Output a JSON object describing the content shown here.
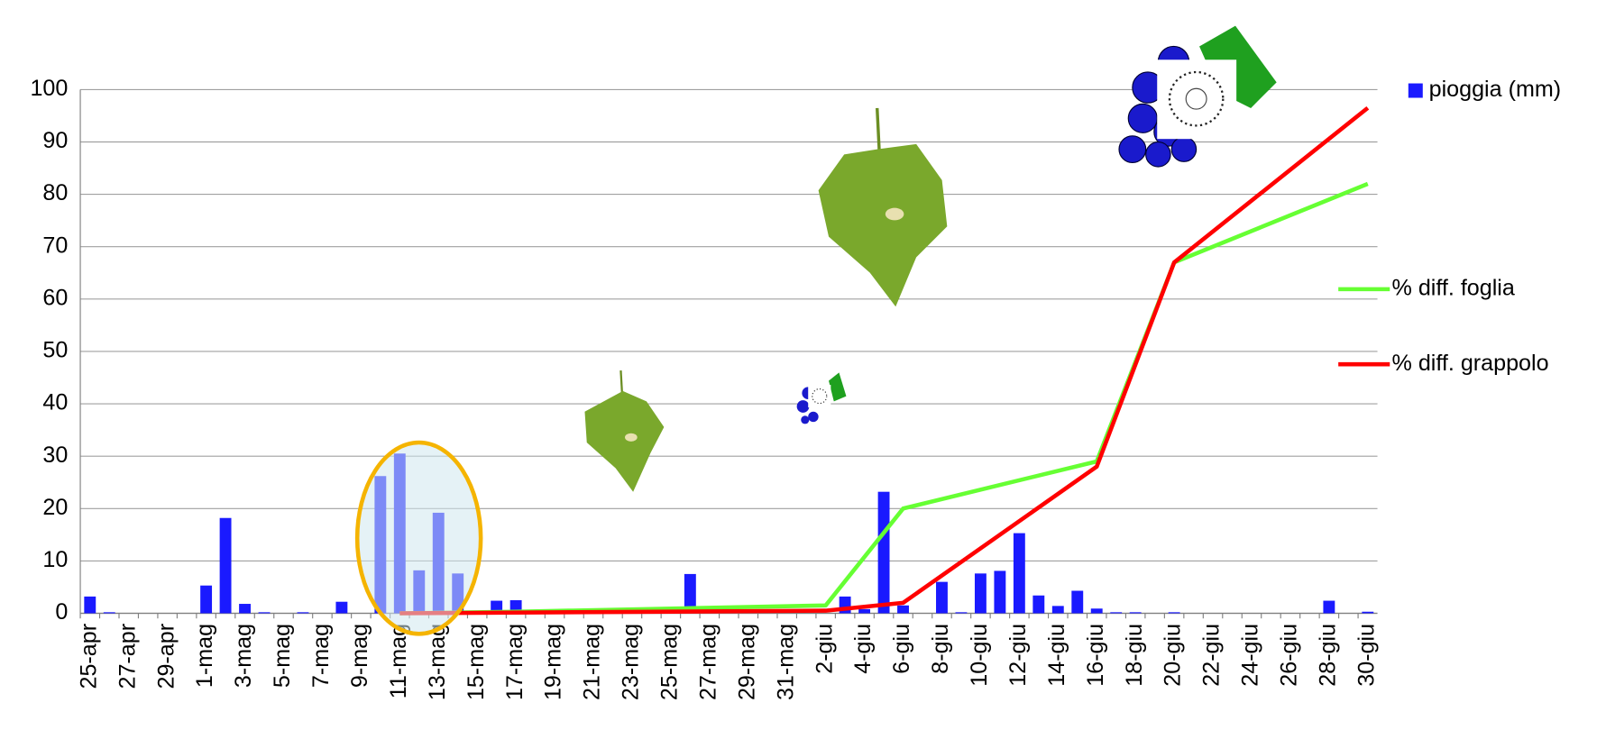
{
  "chart_data": {
    "type": "bar",
    "categories": [
      "25-apr",
      null,
      "27-apr",
      null,
      "29-apr",
      null,
      "1-mag",
      null,
      "3-mag",
      null,
      "5-mag",
      null,
      "7-mag",
      null,
      "9-mag",
      null,
      "11-mag",
      null,
      "13-mag",
      null,
      "15-mag",
      null,
      "17-mag",
      null,
      "19-mag",
      null,
      "21-mag",
      null,
      "23-mag",
      null,
      "25-mag",
      null,
      "27-mag",
      null,
      "29-mag",
      null,
      "31-mag",
      null,
      "2-giu",
      null,
      "4-giu",
      null,
      "6-giu",
      null,
      "8-giu",
      null,
      "10-giu",
      null,
      "12-giu",
      null,
      "14-giu",
      null,
      "16-giu",
      null,
      "18-giu",
      null,
      "20-giu",
      null,
      "22-giu",
      null,
      "24-giu",
      null,
      "26-giu",
      null,
      "28-giu",
      null,
      "30-giu"
    ],
    "ylim": [
      0,
      100
    ],
    "yticks": [
      0,
      10,
      20,
      30,
      40,
      50,
      60,
      70,
      80,
      90,
      100
    ],
    "grid": true,
    "legend": "right",
    "series": [
      {
        "name": "pioggia (mm)",
        "type": "bar",
        "color": "#1a1aff",
        "values": [
          3.2,
          0.2,
          0,
          0,
          0,
          0,
          5.3,
          18.2,
          1.8,
          0.2,
          0,
          0.2,
          0,
          2.2,
          0,
          26.2,
          30.5,
          8.2,
          19.2,
          7.6,
          0,
          2.4,
          2.5,
          0,
          0,
          0,
          0,
          0,
          0,
          1.0,
          0,
          7.5,
          0,
          0,
          0,
          0,
          0,
          0,
          0,
          3.2,
          0.8,
          23.2,
          1.5,
          0,
          6,
          0.2,
          7.6,
          8.1,
          15.3,
          3.4,
          1.4,
          4.3,
          0.9,
          0.2,
          0.2,
          0,
          0.2,
          0,
          0,
          0,
          0,
          0,
          0,
          0,
          2.4,
          0,
          0.3
        ]
      },
      {
        "name": "% diff. foglia",
        "type": "line",
        "color": "#66ff33",
        "x": [
          "11-mag",
          "17-mag",
          "2-giu",
          "6-giu",
          "16-giu",
          "20-giu",
          "30-giu"
        ],
        "values": [
          0,
          0.3,
          1.5,
          20,
          29,
          67,
          82
        ]
      },
      {
        "name": "% diff. grappolo",
        "type": "line",
        "color": "#ff0000",
        "x": [
          "11-mag",
          "2-giu",
          "6-giu",
          "16-giu",
          "20-giu",
          "30-giu"
        ],
        "values": [
          0,
          0.5,
          2,
          28,
          67,
          96.5
        ]
      }
    ]
  }
}
